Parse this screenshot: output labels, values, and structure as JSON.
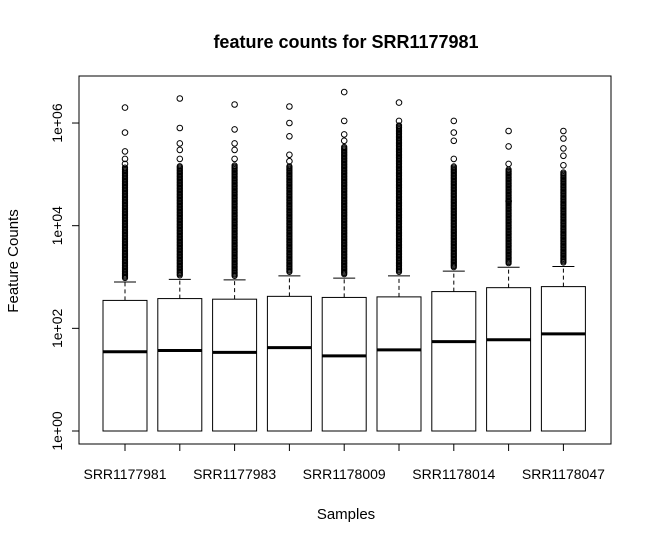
{
  "chart_data": {
    "type": "boxplot",
    "title": "feature counts for SRR1177981",
    "xlabel": "Samples",
    "ylabel": "Feature Counts",
    "y_scale": "log10",
    "ylim": [
      1,
      6000000
    ],
    "y_ticks": [
      {
        "value": 1,
        "label": "1e+00"
      },
      {
        "value": 100,
        "label": "1e+02"
      },
      {
        "value": 10000,
        "label": "1e+04"
      },
      {
        "value": 1000000,
        "label": "1e+06"
      }
    ],
    "x_tick_labels": [
      "SRR1177981",
      "SRR1177983",
      "SRR1178009",
      "SRR1178014",
      "SRR1178047"
    ],
    "x_tick_label_positions": [
      1,
      3,
      5,
      7,
      9
    ],
    "box_fill": "#ffffff",
    "line_color": "#000000",
    "boxes": [
      {
        "whisker_low": 1,
        "q1": 1,
        "median": 35,
        "q3": 350,
        "whisker_high": 800,
        "outliers_dense_to": 140000,
        "outliers_sparse": [
          160000,
          200000,
          280000,
          650000,
          2000000
        ]
      },
      {
        "whisker_low": 1,
        "q1": 1,
        "median": 37,
        "q3": 380,
        "whisker_high": 900,
        "outliers_dense_to": 150000,
        "outliers_sparse": [
          200000,
          300000,
          400000,
          800000,
          3000000
        ]
      },
      {
        "whisker_low": 1,
        "q1": 1,
        "median": 34,
        "q3": 370,
        "whisker_high": 880,
        "outliers_dense_to": 150000,
        "outliers_sparse": [
          200000,
          300000,
          400000,
          750000,
          2300000
        ]
      },
      {
        "whisker_low": 1,
        "q1": 1,
        "median": 42,
        "q3": 420,
        "whisker_high": 1050,
        "outliers_dense_to": 150000,
        "outliers_sparse": [
          180000,
          240000,
          550000,
          1000000,
          2100000
        ]
      },
      {
        "whisker_low": 1,
        "q1": 1,
        "median": 29,
        "q3": 400,
        "whisker_high": 950,
        "outliers_dense_to": 350000,
        "outliers_sparse": [
          450000,
          600000,
          1100000,
          4000000
        ]
      },
      {
        "whisker_low": 1,
        "q1": 1,
        "median": 38,
        "q3": 410,
        "whisker_high": 1050,
        "outliers_dense_to": 900000,
        "outliers_sparse": [
          1100000,
          2500000
        ]
      },
      {
        "whisker_low": 1,
        "q1": 1,
        "median": 55,
        "q3": 520,
        "whisker_high": 1300,
        "outliers_dense_to": 150000,
        "outliers_sparse": [
          200000,
          450000,
          650000,
          1100000
        ]
      },
      {
        "whisker_low": 1,
        "q1": 1,
        "median": 60,
        "q3": 620,
        "whisker_high": 1550,
        "outliers_dense_to": 130000,
        "outliers_sparse": [
          30000,
          160000,
          350000,
          700000
        ]
      },
      {
        "whisker_low": 1,
        "q1": 1,
        "median": 78,
        "q3": 650,
        "whisker_high": 1600,
        "outliers_dense_to": 110000,
        "outliers_sparse": [
          150000,
          230000,
          320000,
          500000,
          700000
        ]
      }
    ]
  }
}
